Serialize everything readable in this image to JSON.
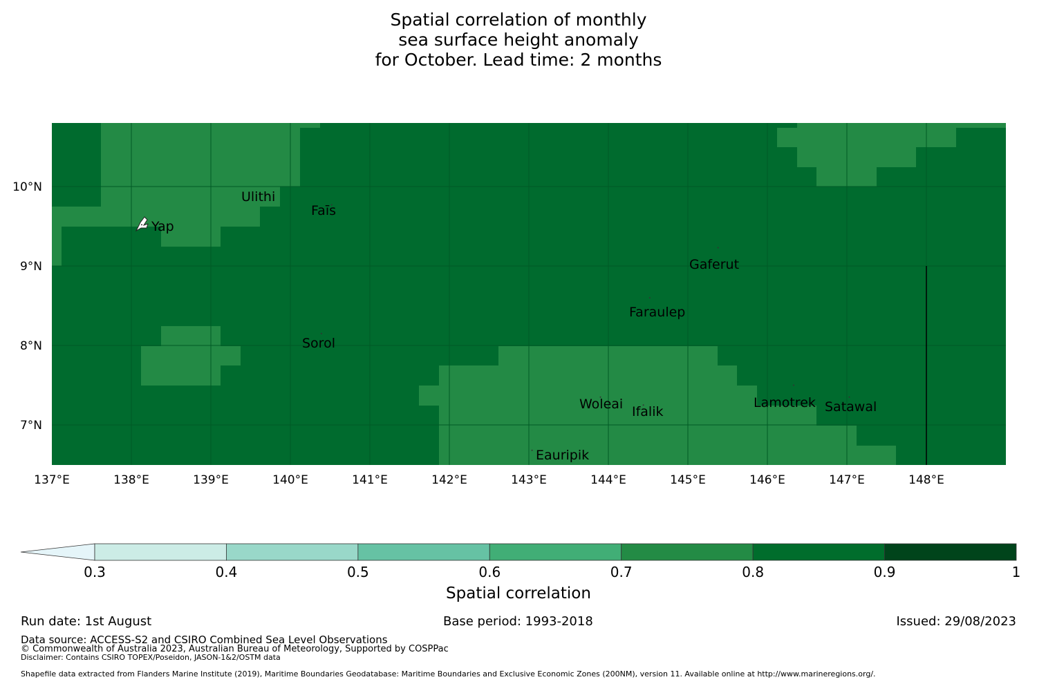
{
  "title": [
    "Spatial correlation of monthly",
    "sea surface height anomaly",
    "for October. Lead time: 2 months"
  ],
  "map": {
    "lon_range": [
      137,
      149
    ],
    "lat_range": [
      6.5,
      10.8
    ],
    "lon_ticks": [
      "137°E",
      "138°E",
      "139°E",
      "140°E",
      "141°E",
      "142°E",
      "143°E",
      "144°E",
      "145°E",
      "146°E",
      "147°E",
      "148°E"
    ],
    "lat_ticks": [
      "10°N",
      "9°N",
      "8°N",
      "7°N"
    ],
    "background_value_color": "#006b2e",
    "patch_color": "#238a45",
    "places": [
      {
        "name": "Ulithi",
        "lon": 139.73,
        "lat": 9.9
      },
      {
        "name": "Fais",
        "lon": 140.52,
        "lat": 9.77
      },
      {
        "name": "Yap",
        "lon": 138.13,
        "lat": 9.52
      },
      {
        "name": "Gaferut",
        "lon": 145.38,
        "lat": 9.23
      },
      {
        "name": "Faraulep",
        "lon": 144.52,
        "lat": 8.6
      },
      {
        "name": "Sorol",
        "lon": 140.39,
        "lat": 8.15
      },
      {
        "name": "Woleai",
        "lon": 143.9,
        "lat": 7.35
      },
      {
        "name": "Ifalik",
        "lon": 144.44,
        "lat": 7.25
      },
      {
        "name": "Lamotrek",
        "lon": 146.33,
        "lat": 7.5
      },
      {
        "name": "Satawal",
        "lon": 147.03,
        "lat": 7.35
      },
      {
        "name": "Eauripik",
        "lon": 143.04,
        "lat": 6.68
      }
    ],
    "labels": [
      "Ulithi",
      "Faīs",
      "Yap",
      "Gaferut",
      "Faraulep",
      "Sorol",
      "Woleai",
      "Ifalik",
      "Lamotrek",
      "Satawal",
      "Eauripik"
    ]
  },
  "colorbar": {
    "label": "Spatial correlation",
    "ticks": [
      "0.3",
      "0.4",
      "0.5",
      "0.6",
      "0.7",
      "0.8",
      "0.9",
      "1"
    ],
    "colors": [
      "#e5f5f9",
      "#ccece6",
      "#99d8c9",
      "#66c2a4",
      "#41ae76",
      "#238b45",
      "#006d2c",
      "#00441b"
    ]
  },
  "footer": {
    "run_date": "Run date: 1st August",
    "base_period": "Base period: 1993-2018",
    "issued": "Issued: 29/08/2023",
    "data_source": "Data source: ACCESS-S2 and CSIRO Combined Sea Level Observations",
    "copyright": "© Commonwealth of Australia 2023, Australian Bureau of Meteorology, Supported by COSPPac",
    "disclaimer": "Disclaimer: Contains CSIRO TOPEX/Poseidon, JASON-1&2/OSTM data",
    "shapefile": "Shapefile data extracted from Flanders Marine Institute (2019), Maritime Boundaries Geodatabase: Maritime Boundaries and Exclusive Economic Zones (200NM), version 11. Available online at http://www.marineregions.org/."
  }
}
